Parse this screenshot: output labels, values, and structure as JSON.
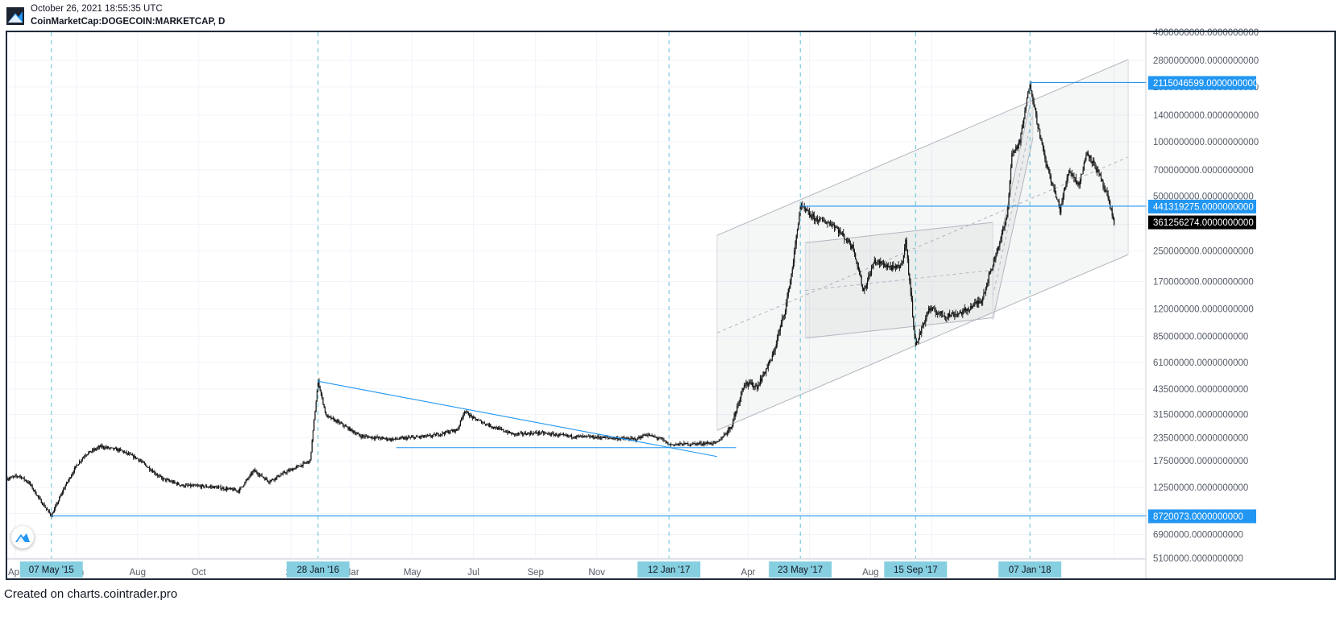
{
  "header": {
    "timestamp": "October 26, 2021 18:55:35 UTC",
    "symbol": "CoinMarketCap:DOGECOIN:MARKETCAP, D",
    "logo_icon": "cointrader-logo-icon"
  },
  "footer": {
    "credit": "Created on charts.cointrader.pro"
  },
  "colors": {
    "accent": "#2196f3",
    "price_black": "#000000",
    "grid": "#eef1f7",
    "channel": "#b2b5be"
  },
  "chart_data": {
    "type": "candlestick",
    "y_scale": "log",
    "ylim": [
      5100000,
      4000000000
    ],
    "xlim": [
      "2015-03-24",
      "2018-05-01"
    ],
    "y_ticks": [
      "4000000000.0000000000",
      "2800000000.0000000000",
      "2000000000.0000000000",
      "1400000000.0000000000",
      "1000000000.0000000000",
      "700000000.0000000000",
      "500000000.0000000000",
      "350000000.0000000000",
      "250000000.0000000000",
      "170000000.0000000000",
      "120000000.0000000000",
      "85000000.0000000000",
      "61000000.0000000000",
      "43500000.0000000000",
      "31500000.0000000000",
      "23500000.0000000000",
      "17500000.0000000000",
      "12500000.0000000000",
      "9000000.0000000000",
      "6900000.0000000000",
      "5100000.0000000000"
    ],
    "x_ticks": [
      "Apr",
      "Jun",
      "Aug",
      "Oct",
      "20",
      "Mar",
      "May",
      "Jul",
      "Sep",
      "Nov",
      "Apr",
      "Aug"
    ],
    "marked_dates": [
      {
        "date": "2015-05-07",
        "label": "07 May '15"
      },
      {
        "date": "2016-01-28",
        "label": "28 Jan '16"
      },
      {
        "date": "2017-01-12",
        "label": "12 Jan '17"
      },
      {
        "date": "2017-05-23",
        "label": "23 May '17"
      },
      {
        "date": "2017-09-15",
        "label": "15 Sep '17"
      },
      {
        "date": "2018-01-07",
        "label": "07 Jan '18"
      }
    ],
    "price_labels": [
      {
        "value": 2115046599,
        "label": "2115046599.0000000000",
        "style": "accent"
      },
      {
        "value": 441319275,
        "label": "441319275.0000000000",
        "style": "accent"
      },
      {
        "value": 361256274,
        "label": "361256274.0000000000",
        "style": "current"
      },
      {
        "value": 8720073,
        "label": "8720073.0000000000",
        "style": "accent"
      }
    ],
    "anchors": [
      [
        "2015-03-24",
        14000000
      ],
      [
        "2015-04-05",
        14500000
      ],
      [
        "2015-04-15",
        13200000
      ],
      [
        "2015-04-25",
        10800000
      ],
      [
        "2015-05-07",
        8720073
      ],
      [
        "2015-05-20",
        12500000
      ],
      [
        "2015-06-01",
        16500000
      ],
      [
        "2015-06-10",
        19000000
      ],
      [
        "2015-06-25",
        21000000
      ],
      [
        "2015-07-15",
        20000000
      ],
      [
        "2015-08-01",
        18000000
      ],
      [
        "2015-08-25",
        14000000
      ],
      [
        "2015-09-15",
        12800000
      ],
      [
        "2015-10-15",
        12600000
      ],
      [
        "2015-11-10",
        12000000
      ],
      [
        "2015-11-25",
        15500000
      ],
      [
        "2015-12-10",
        13500000
      ],
      [
        "2015-12-25",
        15000000
      ],
      [
        "2016-01-05",
        16000000
      ],
      [
        "2016-01-20",
        17500000
      ],
      [
        "2016-01-28",
        48000000
      ],
      [
        "2016-02-05",
        31000000
      ],
      [
        "2016-02-20",
        28000000
      ],
      [
        "2016-03-10",
        24000000
      ],
      [
        "2016-04-10",
        23000000
      ],
      [
        "2016-05-20",
        24000000
      ],
      [
        "2016-06-15",
        26000000
      ],
      [
        "2016-06-22",
        33000000
      ],
      [
        "2016-07-01",
        30000000
      ],
      [
        "2016-07-20",
        27000000
      ],
      [
        "2016-08-10",
        24500000
      ],
      [
        "2016-09-05",
        25000000
      ],
      [
        "2016-10-01",
        24000000
      ],
      [
        "2016-11-10",
        23500000
      ],
      [
        "2016-12-10",
        23000000
      ],
      [
        "2016-12-20",
        24500000
      ],
      [
        "2017-01-05",
        23000000
      ],
      [
        "2017-01-12",
        21500000
      ],
      [
        "2017-02-10",
        21800000
      ],
      [
        "2017-03-01",
        22000000
      ],
      [
        "2017-03-15",
        27000000
      ],
      [
        "2017-03-28",
        47000000
      ],
      [
        "2017-04-10",
        45000000
      ],
      [
        "2017-04-25",
        65000000
      ],
      [
        "2017-05-08",
        120000000
      ],
      [
        "2017-05-15",
        200000000
      ],
      [
        "2017-05-23",
        441319275
      ],
      [
        "2017-06-05",
        380000000
      ],
      [
        "2017-06-25",
        350000000
      ],
      [
        "2017-07-15",
        260000000
      ],
      [
        "2017-07-25",
        150000000
      ],
      [
        "2017-08-05",
        220000000
      ],
      [
        "2017-08-25",
        200000000
      ],
      [
        "2017-09-01",
        210000000
      ],
      [
        "2017-09-05",
        285000000
      ],
      [
        "2017-09-10",
        150000000
      ],
      [
        "2017-09-15",
        75000000
      ],
      [
        "2017-09-28",
        120000000
      ],
      [
        "2017-10-15",
        110000000
      ],
      [
        "2017-11-01",
        115000000
      ],
      [
        "2017-11-20",
        135000000
      ],
      [
        "2017-12-05",
        250000000
      ],
      [
        "2017-12-15",
        380000000
      ],
      [
        "2017-12-20",
        850000000
      ],
      [
        "2017-12-28",
        1000000000
      ],
      [
        "2018-01-07",
        2115046599
      ],
      [
        "2018-01-14",
        1300000000
      ],
      [
        "2018-01-22",
        800000000
      ],
      [
        "2018-02-06",
        420000000
      ],
      [
        "2018-02-15",
        700000000
      ],
      [
        "2018-02-25",
        580000000
      ],
      [
        "2018-03-05",
        880000000
      ],
      [
        "2018-03-15",
        700000000
      ],
      [
        "2018-03-25",
        500000000
      ],
      [
        "2018-04-01",
        361256274
      ]
    ],
    "lines": [
      {
        "kind": "trendline",
        "from": [
          "2016-01-28",
          48000000
        ],
        "to": [
          "2017-03-01",
          18500000
        ]
      },
      {
        "kind": "horizontal-segment",
        "from": [
          "2016-04-15",
          20700000
        ],
        "to": [
          "2017-03-20",
          20700000
        ]
      },
      {
        "kind": "horizontal-ray",
        "from": [
          "2015-05-07",
          8720073
        ]
      },
      {
        "kind": "horizontal-ray",
        "from": [
          "2017-05-23",
          441319275
        ]
      },
      {
        "kind": "horizontal-ray",
        "from": [
          "2018-01-07",
          2115046599
        ]
      }
    ],
    "channels": [
      {
        "name": "large",
        "p1": [
          "2017-03-01",
          305000000
        ],
        "p2": [
          "2018-04-15",
          2830000000
        ],
        "width_ratio_low": 0.0845,
        "end": "2018-04-15"
      },
      {
        "name": "mid",
        "p1": [
          "2017-05-28",
          170000000
        ],
        "p2": [
          "2017-12-01",
          220000000
        ],
        "upper_offset": 2.45,
        "end": "2017-12-01"
      },
      {
        "name": "small",
        "p1": [
          "2017-12-01",
          190000000
        ],
        "p2": [
          "2018-01-10",
          1900000000
        ],
        "lower_offset": 0.55
      }
    ]
  }
}
